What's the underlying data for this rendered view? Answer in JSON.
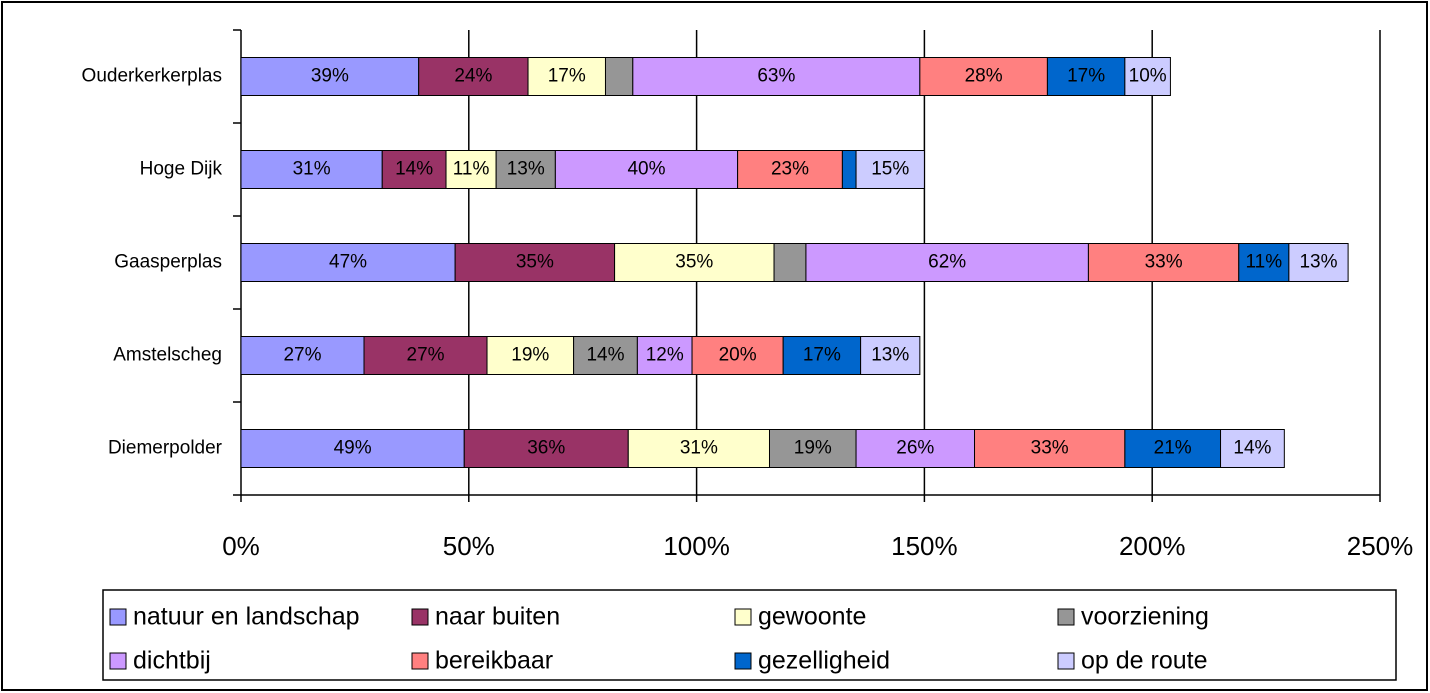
{
  "chart_data": {
    "type": "stacked-barh",
    "categories": [
      "Ouderkerkerplas",
      "Hoge Dijk",
      "Gaasperplas",
      "Amstelscheg",
      "Diemerpolder"
    ],
    "series": [
      {
        "name": "natuur en landschap",
        "color": "#9999ff",
        "values": [
          39,
          31,
          47,
          27,
          49
        ],
        "value_labels": [
          "39%",
          "31%",
          "47%",
          "27%",
          "49%"
        ]
      },
      {
        "name": "naar buiten",
        "color": "#993366",
        "values": [
          24,
          14,
          35,
          27,
          36
        ],
        "value_labels": [
          "24%",
          "14%",
          "35%",
          "27%",
          "36%"
        ]
      },
      {
        "name": "gewoonte",
        "color": "#ffffcc",
        "values": [
          17,
          11,
          35,
          19,
          31
        ],
        "value_labels": [
          "17%",
          "11%",
          "35%",
          "19%",
          "31%"
        ]
      },
      {
        "name": "voorziening",
        "color": "#969696",
        "values": [
          6,
          13,
          7,
          14,
          19
        ],
        "value_labels": [
          null,
          "13%",
          null,
          "14%",
          "19%"
        ]
      },
      {
        "name": "dichtbij",
        "color": "#cc99ff",
        "values": [
          63,
          40,
          62,
          12,
          26
        ],
        "value_labels": [
          "63%",
          "40%",
          "62%",
          "12%",
          "26%"
        ]
      },
      {
        "name": "bereikbaar",
        "color": "#ff8080",
        "values": [
          28,
          23,
          33,
          20,
          33
        ],
        "value_labels": [
          "28%",
          "23%",
          "33%",
          "20%",
          "33%"
        ]
      },
      {
        "name": "gezelligheid",
        "color": "#0066cc",
        "values": [
          17,
          3,
          11,
          17,
          21
        ],
        "value_labels": [
          "17%",
          null,
          "11%",
          "17%",
          "21%"
        ]
      },
      {
        "name": "op de route",
        "color": "#ccccff",
        "values": [
          10,
          15,
          13,
          13,
          14
        ],
        "value_labels": [
          "10%",
          "15%",
          "13%",
          "13%",
          "14%"
        ]
      }
    ],
    "xlim": [
      0,
      250
    ],
    "xticks": [
      {
        "value": 0,
        "label": "0%"
      },
      {
        "value": 50,
        "label": "50%"
      },
      {
        "value": 100,
        "label": "100%"
      },
      {
        "value": 150,
        "label": "150%"
      },
      {
        "value": 200,
        "label": "200%"
      },
      {
        "value": 250,
        "label": "250%"
      }
    ],
    "grid": true,
    "legend": "bottom"
  }
}
